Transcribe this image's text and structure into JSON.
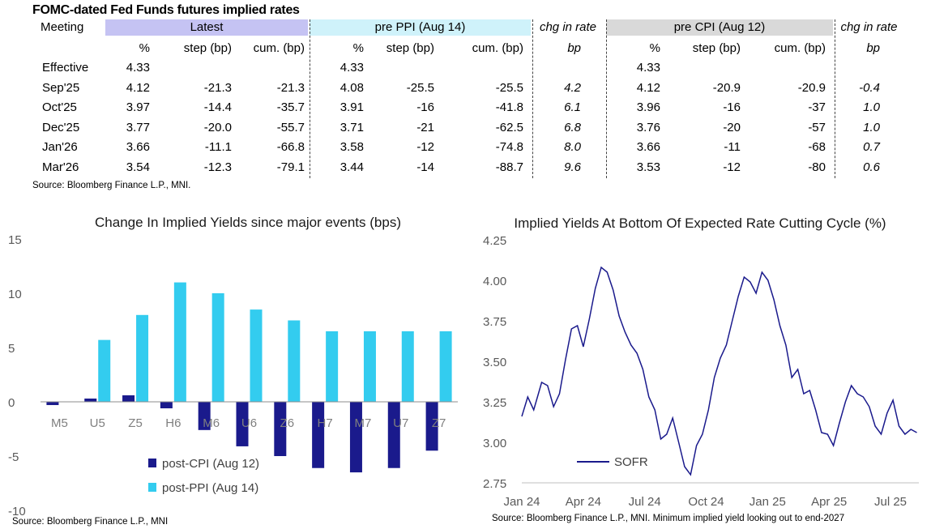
{
  "table": {
    "title": "FOMC-dated Fed Funds futures implied rates",
    "meeting_label": "Meeting",
    "groups": [
      {
        "label": "Latest",
        "color": "#c5c3f3"
      },
      {
        "label": "pre PPI (Aug 14)",
        "color": "#cff2fa"
      },
      {
        "label": "chg in rate",
        "color": "#ffffff"
      },
      {
        "label": "pre CPI (Aug 12)",
        "color": "#d9d9d9"
      },
      {
        "label": "chg in rate",
        "color": "#ffffff"
      }
    ],
    "subheaders": [
      "%",
      "step (bp)",
      "cum. (bp)",
      "%",
      "step (bp)",
      "cum. (bp)",
      "bp",
      "%",
      "step (bp)",
      "cum. (bp)",
      "bp"
    ],
    "rows": [
      {
        "meeting": "Effective",
        "cells": [
          "4.33",
          "",
          "",
          "4.33",
          "",
          "",
          "",
          "4.33",
          "",
          "",
          ""
        ]
      },
      {
        "meeting": "Sep'25",
        "cells": [
          "4.12",
          "-21.3",
          "-21.3",
          "4.08",
          "-25.5",
          "-25.5",
          "4.2",
          "4.12",
          "-20.9",
          "-20.9",
          "-0.4"
        ]
      },
      {
        "meeting": "Oct'25",
        "cells": [
          "3.97",
          "-14.4",
          "-35.7",
          "3.91",
          "-16",
          "-41.8",
          "6.1",
          "3.96",
          "-16",
          "-37",
          "1.0"
        ]
      },
      {
        "meeting": "Dec'25",
        "cells": [
          "3.77",
          "-20.0",
          "-55.7",
          "3.71",
          "-21",
          "-62.5",
          "6.8",
          "3.76",
          "-20",
          "-57",
          "1.0"
        ]
      },
      {
        "meeting": "Jan'26",
        "cells": [
          "3.66",
          "-11.1",
          "-66.8",
          "3.58",
          "-12",
          "-74.8",
          "8.0",
          "3.66",
          "-11",
          "-68",
          "0.7"
        ]
      },
      {
        "meeting": "Mar'26",
        "cells": [
          "3.54",
          "-12.3",
          "-79.1",
          "3.44",
          "-14",
          "-88.7",
          "9.6",
          "3.53",
          "-12",
          "-80",
          "0.6"
        ]
      }
    ],
    "source": "Source: Bloomberg Finance L.P., MNI."
  },
  "chart_data": [
    {
      "type": "bar",
      "title": "Change In Implied Yields since major events (bps)",
      "categories": [
        "M5",
        "U5",
        "Z5",
        "H6",
        "M6",
        "U6",
        "Z6",
        "H7",
        "M7",
        "U7",
        "Z7"
      ],
      "series": [
        {
          "name": "post-CPI (Aug 12)",
          "color": "#1a1a8c",
          "values": [
            -0.3,
            0.3,
            0.6,
            -0.6,
            -2.6,
            -4.1,
            -5.0,
            -6.1,
            -6.5,
            -6.1,
            -4.5
          ]
        },
        {
          "name": "post-PPI (Aug 14)",
          "color": "#33ccef",
          "values": [
            0,
            5.7,
            8.0,
            11.0,
            10.0,
            8.5,
            7.5,
            6.5,
            6.5,
            6.5,
            6.5
          ]
        }
      ],
      "ylim": [
        -10,
        15
      ],
      "yticks": [
        "15",
        "10",
        "5",
        "0",
        "-5",
        "-10"
      ],
      "legend": "bottom-left",
      "source": "Source: Bloomberg Finance L.P., MNI"
    },
    {
      "type": "line",
      "title": "Implied Yields At Bottom Of Expected Rate Cutting Cycle (%)",
      "xticks": [
        "Jan 24",
        "Apr 24",
        "Jul 24",
        "Oct 24",
        "Jan 25",
        "Apr 25",
        "Jul 25"
      ],
      "yticks": [
        "4.25",
        "4.00",
        "3.75",
        "3.50",
        "3.25",
        "3.00",
        "2.75"
      ],
      "ylim": [
        2.75,
        4.25
      ],
      "xlim": [
        0,
        20
      ],
      "series": [
        {
          "name": "SOFR",
          "color": "#1a1a8c",
          "x": [
            0,
            0.3,
            0.6,
            1,
            1.3,
            1.6,
            1.9,
            2.2,
            2.5,
            2.8,
            3.1,
            3.4,
            3.7,
            4.0,
            4.3,
            4.6,
            4.9,
            5.2,
            5.5,
            5.8,
            6.1,
            6.4,
            6.7,
            7.0,
            7.3,
            7.6,
            7.9,
            8.2,
            8.5,
            8.8,
            9.1,
            9.4,
            9.7,
            10.0,
            10.3,
            10.6,
            10.9,
            11.2,
            11.5,
            11.8,
            12.1,
            12.4,
            12.7,
            13.0,
            13.3,
            13.6,
            13.9,
            14.2,
            14.5,
            14.8,
            15.1,
            15.4,
            15.7,
            16.0,
            16.3,
            16.6,
            16.9,
            17.2,
            17.5,
            17.8,
            18.1,
            18.4,
            18.7,
            19.0,
            19.3,
            19.6,
            19.9
          ],
          "values": [
            3.16,
            3.28,
            3.2,
            3.37,
            3.35,
            3.22,
            3.3,
            3.51,
            3.7,
            3.72,
            3.59,
            3.76,
            3.95,
            4.08,
            4.05,
            3.94,
            3.78,
            3.68,
            3.6,
            3.55,
            3.45,
            3.28,
            3.2,
            3.02,
            3.05,
            3.15,
            3.0,
            2.85,
            2.8,
            2.98,
            3.05,
            3.2,
            3.4,
            3.52,
            3.6,
            3.75,
            3.9,
            4.02,
            3.99,
            3.92,
            4.05,
            4.0,
            3.88,
            3.72,
            3.6,
            3.4,
            3.45,
            3.3,
            3.32,
            3.2,
            3.06,
            3.05,
            2.98,
            3.12,
            3.25,
            3.35,
            3.3,
            3.28,
            3.22,
            3.1,
            3.05,
            3.18,
            3.26,
            3.1,
            3.05,
            3.08,
            3.06
          ]
        }
      ],
      "legend": "bottom-left",
      "source": "Source: Bloomberg Finance L.P., MNI. Minimum implied yield looking out to end-2027"
    }
  ]
}
